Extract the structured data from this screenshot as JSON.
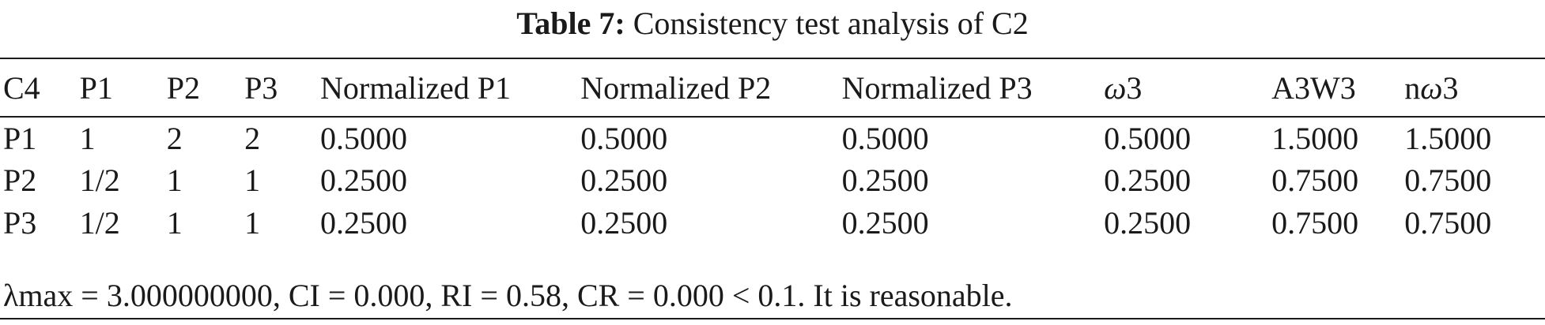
{
  "caption": {
    "label": "Table 7:",
    "title": "Consistency test analysis of C2"
  },
  "table": {
    "headers": [
      {
        "text": "C4"
      },
      {
        "text": "P1"
      },
      {
        "text": "P2"
      },
      {
        "text": "P3"
      },
      {
        "text": "Normalized P1"
      },
      {
        "text": "Normalized P2"
      },
      {
        "text": "Normalized P3"
      },
      {
        "prefix": "ω",
        "suffix": "3"
      },
      {
        "text": "A3W3"
      },
      {
        "prefix": "n",
        "italic": "ω",
        "suffix": "3"
      }
    ],
    "rows": [
      [
        "P1",
        "1",
        "2",
        "2",
        "0.5000",
        "0.5000",
        "0.5000",
        "0.5000",
        "1.5000",
        "1.5000"
      ],
      [
        "P2",
        "1/2",
        "1",
        "1",
        "0.2500",
        "0.2500",
        "0.2500",
        "0.2500",
        "0.7500",
        "0.7500"
      ],
      [
        "P3",
        "1/2",
        "1",
        "1",
        "0.2500",
        "0.2500",
        "0.2500",
        "0.2500",
        "0.7500",
        "0.7500"
      ]
    ]
  },
  "footnote": "λmax = 3.000000000, CI = 0.000, RI = 0.58, CR = 0.000 < 0.1. It is reasonable."
}
